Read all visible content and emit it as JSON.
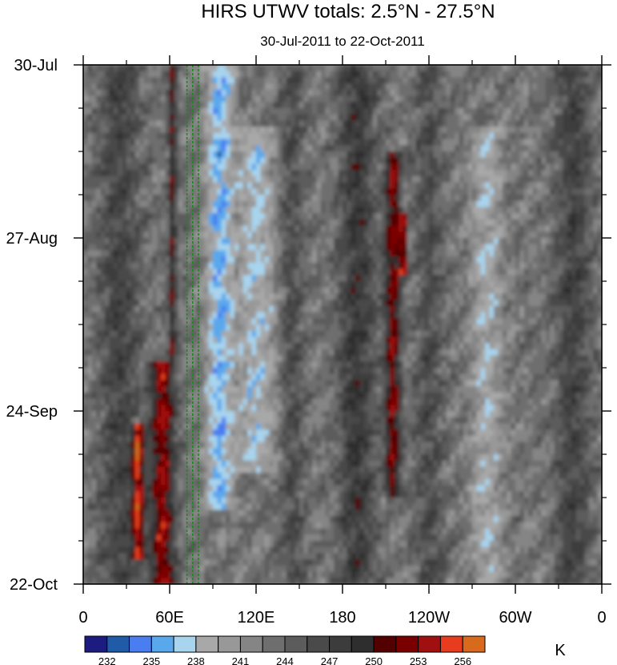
{
  "chart_data": {
    "type": "heatmap",
    "title": "HIRS UTWV totals: 2.5°N - 27.5°N",
    "subtitle": "30-Jul-2011 to 22-Oct-2011",
    "xlabel": "",
    "ylabel": "",
    "x_range_degrees_east": [
      0,
      360
    ],
    "x_ticks": [
      {
        "lon": 0,
        "label": "0"
      },
      {
        "lon": 60,
        "label": "60E"
      },
      {
        "lon": 120,
        "label": "120E"
      },
      {
        "lon": 180,
        "label": "180"
      },
      {
        "lon": 240,
        "label": "120W"
      },
      {
        "lon": 300,
        "label": "60W"
      },
      {
        "lon": 360,
        "label": "0"
      }
    ],
    "y_range_days_from_top": [
      0,
      84
    ],
    "y_ticks": [
      {
        "day": 0,
        "label": "30-Jul"
      },
      {
        "day": 28,
        "label": "27-Aug"
      },
      {
        "day": 56,
        "label": "24-Sep"
      },
      {
        "day": 84,
        "label": "22-Oct"
      }
    ],
    "y_minor_tick_interval_days": 7,
    "colorbar": {
      "unit": "K",
      "levels": [
        232,
        233.5,
        235,
        236.5,
        238,
        239.5,
        241,
        242.5,
        244,
        245.5,
        247,
        248.5,
        250,
        251.5,
        253,
        254.5,
        256
      ],
      "labeled_levels": [
        232,
        235,
        238,
        241,
        244,
        247,
        250,
        253,
        256
      ],
      "colors": [
        "#1c1c80",
        "#1f5ba6",
        "#4a7df0",
        "#5aa8ec",
        "#a8d4ee",
        "#a8a8a8",
        "#989898",
        "#858585",
        "#6e6e6e",
        "#5c5c5c",
        "#4a4a4a",
        "#3c3c3c",
        "#2e2e2e",
        "#520000",
        "#7a0000",
        "#a01010",
        "#e83c1e",
        "#d86a1e"
      ]
    },
    "reference_lines_lon": [
      72,
      76,
      80
    ],
    "reference_line_color": "#1a8a1a",
    "bands": [
      {
        "lon": 25,
        "width": 20,
        "value": 247,
        "day_start": 0,
        "day_end": 84
      },
      {
        "lon": 55,
        "width": 12,
        "value": 253,
        "day_start": 48,
        "day_end": 84
      },
      {
        "lon": 38,
        "width": 6,
        "value": 255,
        "day_start": 58,
        "day_end": 80
      },
      {
        "lon": 62,
        "width": 4,
        "value": 250,
        "day_start": 0,
        "day_end": 48
      },
      {
        "lon": 95,
        "width": 14,
        "value": 236,
        "day_start": 0,
        "day_end": 72
      },
      {
        "lon": 120,
        "width": 20,
        "value": 238,
        "day_start": 10,
        "day_end": 66
      },
      {
        "lon": 145,
        "width": 12,
        "value": 246,
        "day_start": 0,
        "day_end": 84
      },
      {
        "lon": 190,
        "width": 18,
        "value": 248,
        "day_start": 0,
        "day_end": 84
      },
      {
        "lon": 215,
        "width": 8,
        "value": 252,
        "day_start": 14,
        "day_end": 70
      },
      {
        "lon": 222,
        "width": 4,
        "value": 255,
        "day_start": 24,
        "day_end": 34
      },
      {
        "lon": 240,
        "width": 14,
        "value": 246,
        "day_start": 0,
        "day_end": 84
      },
      {
        "lon": 280,
        "width": 16,
        "value": 239,
        "day_start": 10,
        "day_end": 84
      },
      {
        "lon": 340,
        "width": 18,
        "value": 247,
        "day_start": 0,
        "day_end": 84
      }
    ]
  }
}
